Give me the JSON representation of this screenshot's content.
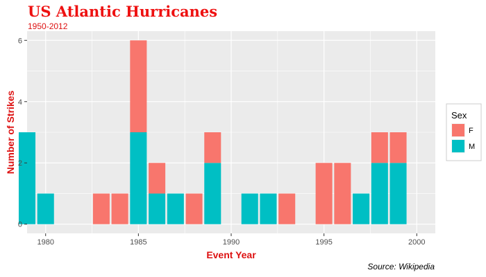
{
  "chart_data": {
    "type": "bar",
    "stacked": true,
    "title": "US Atlantic Hurricanes",
    "subtitle": "1950-2012",
    "xlabel": "Event Year",
    "ylabel": "Number of Strikes",
    "caption": "Source: Wikipedia",
    "xlim": [
      1979,
      2001
    ],
    "ylim": [
      -0.3,
      6.3
    ],
    "x_ticks": [
      1980,
      1985,
      1990,
      1995,
      2000
    ],
    "y_ticks": [
      0,
      2,
      4,
      6
    ],
    "legend": {
      "title": "Sex",
      "position": "right",
      "entries": [
        {
          "label": "F",
          "color": "#F8766D"
        },
        {
          "label": "M",
          "color": "#00BFC4"
        }
      ]
    },
    "x": [
      1979,
      1980,
      1983,
      1984,
      1985,
      1986,
      1987,
      1988,
      1989,
      1991,
      1992,
      1993,
      1995,
      1996,
      1997,
      1998,
      1999
    ],
    "series": [
      {
        "name": "M",
        "color": "#00BFC4",
        "values": [
          3,
          1,
          0,
          0,
          3,
          1,
          1,
          0,
          2,
          1,
          1,
          0,
          0,
          0,
          1,
          2,
          2
        ]
      },
      {
        "name": "F",
        "color": "#F8766D",
        "values": [
          0,
          0,
          1,
          1,
          3,
          1,
          0,
          1,
          1,
          0,
          0,
          1,
          2,
          2,
          0,
          1,
          1
        ]
      }
    ],
    "grid": true,
    "panel_background": "#EBEBEB"
  }
}
